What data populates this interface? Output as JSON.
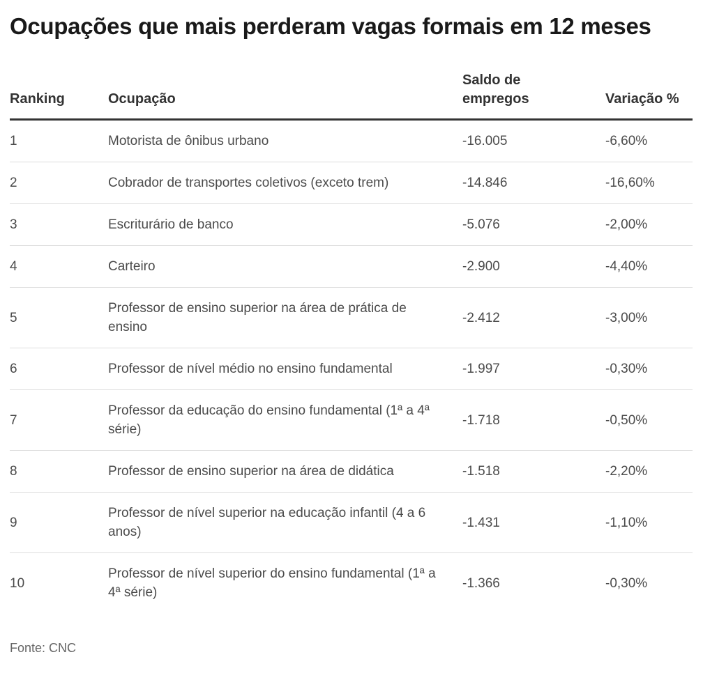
{
  "title": "Ocupações que mais perderam vagas formais em 12 meses",
  "source": "Fonte: CNC",
  "colors": {
    "background": "#ffffff",
    "title_text": "#191919",
    "header_text": "#333333",
    "body_text": "#4b4b4b",
    "source_text": "#666666",
    "header_rule": "#333333",
    "row_divider": "#dddddd"
  },
  "table": {
    "columns": [
      {
        "key": "ranking",
        "label": "Ranking"
      },
      {
        "key": "ocupacao",
        "label": "Ocupação"
      },
      {
        "key": "saldo",
        "label": "Saldo de empregos"
      },
      {
        "key": "variacao",
        "label": "Variação %"
      }
    ],
    "rows": [
      {
        "ranking": "1",
        "ocupacao": "Motorista de ônibus urbano",
        "saldo": "-16.005",
        "variacao": "-6,60%"
      },
      {
        "ranking": "2",
        "ocupacao": "Cobrador de transportes coletivos (exceto trem)",
        "saldo": "-14.846",
        "variacao": "-16,60%"
      },
      {
        "ranking": "3",
        "ocupacao": "Escriturário de banco",
        "saldo": "-5.076",
        "variacao": "-2,00%"
      },
      {
        "ranking": "4",
        "ocupacao": "Carteiro",
        "saldo": "-2.900",
        "variacao": "-4,40%"
      },
      {
        "ranking": "5",
        "ocupacao": "Professor de ensino superior na área de prática de ensino",
        "saldo": "-2.412",
        "variacao": "-3,00%"
      },
      {
        "ranking": "6",
        "ocupacao": "Professor de nível médio no ensino fundamental",
        "saldo": "-1.997",
        "variacao": "-0,30%"
      },
      {
        "ranking": "7",
        "ocupacao": "Professor da educação do ensino fundamental (1ª a 4ª série)",
        "saldo": "-1.718",
        "variacao": "-0,50%"
      },
      {
        "ranking": "8",
        "ocupacao": "Professor de ensino superior na área de didática",
        "saldo": "-1.518",
        "variacao": "-2,20%"
      },
      {
        "ranking": "9",
        "ocupacao": "Professor de nível superior na educação infantil (4 a 6 anos)",
        "saldo": "-1.431",
        "variacao": "-1,10%"
      },
      {
        "ranking": "10",
        "ocupacao": "Professor de nível superior do ensino fundamental (1ª a 4ª série)",
        "saldo": "-1.366",
        "variacao": "-0,30%"
      }
    ]
  },
  "chart_data": {
    "type": "table",
    "title": "Ocupações que mais perderam vagas formais em 12 meses",
    "columns": [
      "Ranking",
      "Ocupação",
      "Saldo de empregos",
      "Variação %"
    ],
    "categories": [
      "Motorista de ônibus urbano",
      "Cobrador de transportes coletivos (exceto trem)",
      "Escriturário de banco",
      "Carteiro",
      "Professor de ensino superior na área de prática de ensino",
      "Professor de nível médio no ensino fundamental",
      "Professor da educação do ensino fundamental (1ª a 4ª série)",
      "Professor de ensino superior na área de didática",
      "Professor de nível superior na educação infantil (4 a 6 anos)",
      "Professor de nível superior do ensino fundamental (1ª a 4ª série)"
    ],
    "series": [
      {
        "name": "Saldo de empregos",
        "values": [
          -16005,
          -14846,
          -5076,
          -2900,
          -2412,
          -1997,
          -1718,
          -1518,
          -1431,
          -1366
        ]
      },
      {
        "name": "Variação %",
        "values": [
          -6.6,
          -16.6,
          -2.0,
          -4.4,
          -3.0,
          -0.3,
          -0.5,
          -2.2,
          -1.1,
          -0.3
        ]
      }
    ],
    "source": "CNC"
  }
}
